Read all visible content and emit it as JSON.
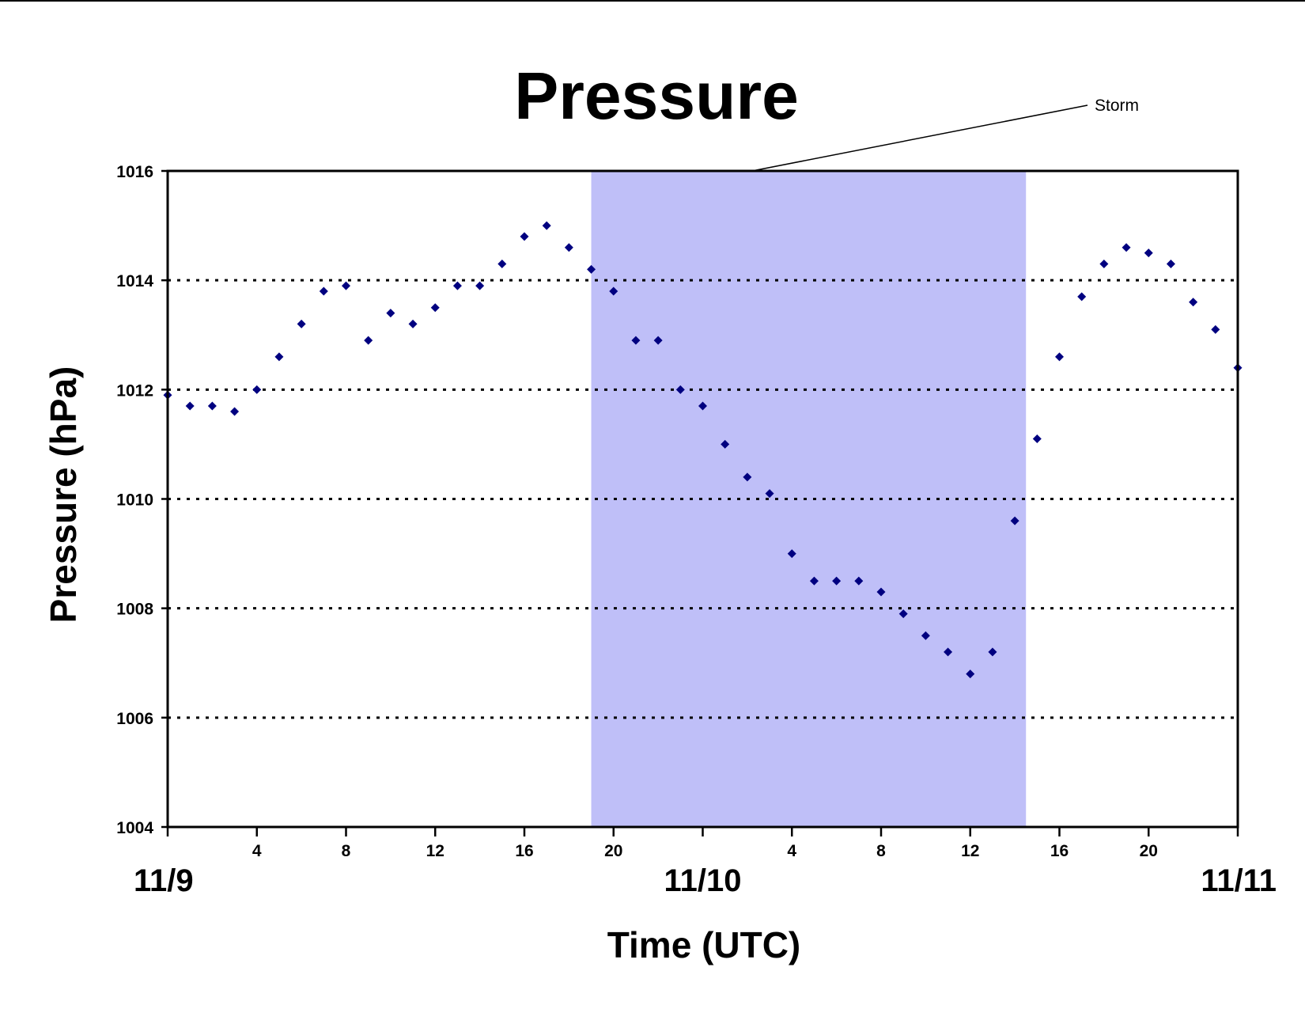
{
  "chart_data": {
    "type": "scatter",
    "title": "Pressure",
    "xlabel": "Time (UTC)",
    "ylabel": "Pressure (hPa)",
    "ylim": [
      1004,
      1016
    ],
    "y_ticks": [
      "1004",
      "1006",
      "1008",
      "1010",
      "1012",
      "1014",
      "1016"
    ],
    "xlim_hours": [
      0,
      48
    ],
    "x_ticks": [
      "4",
      "8",
      "12",
      "16",
      "20",
      "",
      "4",
      "8",
      "12",
      "16",
      "20"
    ],
    "date_labels": [
      "11/9",
      "11/10",
      "11/11"
    ],
    "grid": "horizontal-dotted",
    "marker_color": "#000080",
    "annotation": {
      "label": "Storm",
      "start": "11/9 19:00",
      "end": "11/10 14:30",
      "color": "#bfbff8"
    },
    "series": [
      {
        "x": [
          "11/9 00:00",
          "11/9 01:00",
          "11/9 02:00",
          "11/9 03:00",
          "11/9 04:00",
          "11/9 05:00",
          "11/9 06:00",
          "11/9 07:00",
          "11/9 08:00",
          "11/9 09:00",
          "11/9 10:00",
          "11/9 11:00",
          "11/9 12:00",
          "11/9 13:00",
          "11/9 14:00",
          "11/9 15:00",
          "11/9 16:00",
          "11/9 17:00",
          "11/9 18:00",
          "11/9 19:00",
          "11/9 20:00",
          "11/9 21:00",
          "11/9 22:00",
          "11/9 23:00",
          "11/10 00:00",
          "11/10 01:00",
          "11/10 02:00",
          "11/10 03:00",
          "11/10 04:00",
          "11/10 05:00",
          "11/10 06:00",
          "11/10 07:00",
          "11/10 08:00",
          "11/10 09:00",
          "11/10 10:00",
          "11/10 11:00",
          "11/10 12:00",
          "11/10 13:00",
          "11/10 14:00",
          "11/10 15:00",
          "11/10 16:00",
          "11/10 17:00",
          "11/10 18:00",
          "11/10 19:00",
          "11/10 20:00",
          "11/10 21:00",
          "11/10 22:00",
          "11/10 23:00",
          "11/11 00:00"
        ],
        "values": [
          1011.9,
          1011.7,
          1011.7,
          1011.6,
          1012.0,
          1012.6,
          1013.2,
          1013.8,
          1013.9,
          1012.9,
          1013.4,
          1013.2,
          1013.5,
          1013.9,
          1013.9,
          1014.3,
          1014.8,
          1015.0,
          1014.6,
          1014.2,
          1013.8,
          1012.9,
          1012.9,
          1012.0,
          1011.7,
          1011.0,
          1010.4,
          1010.1,
          1009.0,
          1008.5,
          1008.5,
          1008.5,
          1008.3,
          1007.9,
          1007.5,
          1007.2,
          1006.8,
          1007.2,
          1009.6,
          1011.1,
          1012.6,
          1013.7,
          1014.3,
          1014.6,
          1014.5,
          1014.3,
          1013.6,
          1013.1,
          1012.4
        ]
      }
    ]
  }
}
